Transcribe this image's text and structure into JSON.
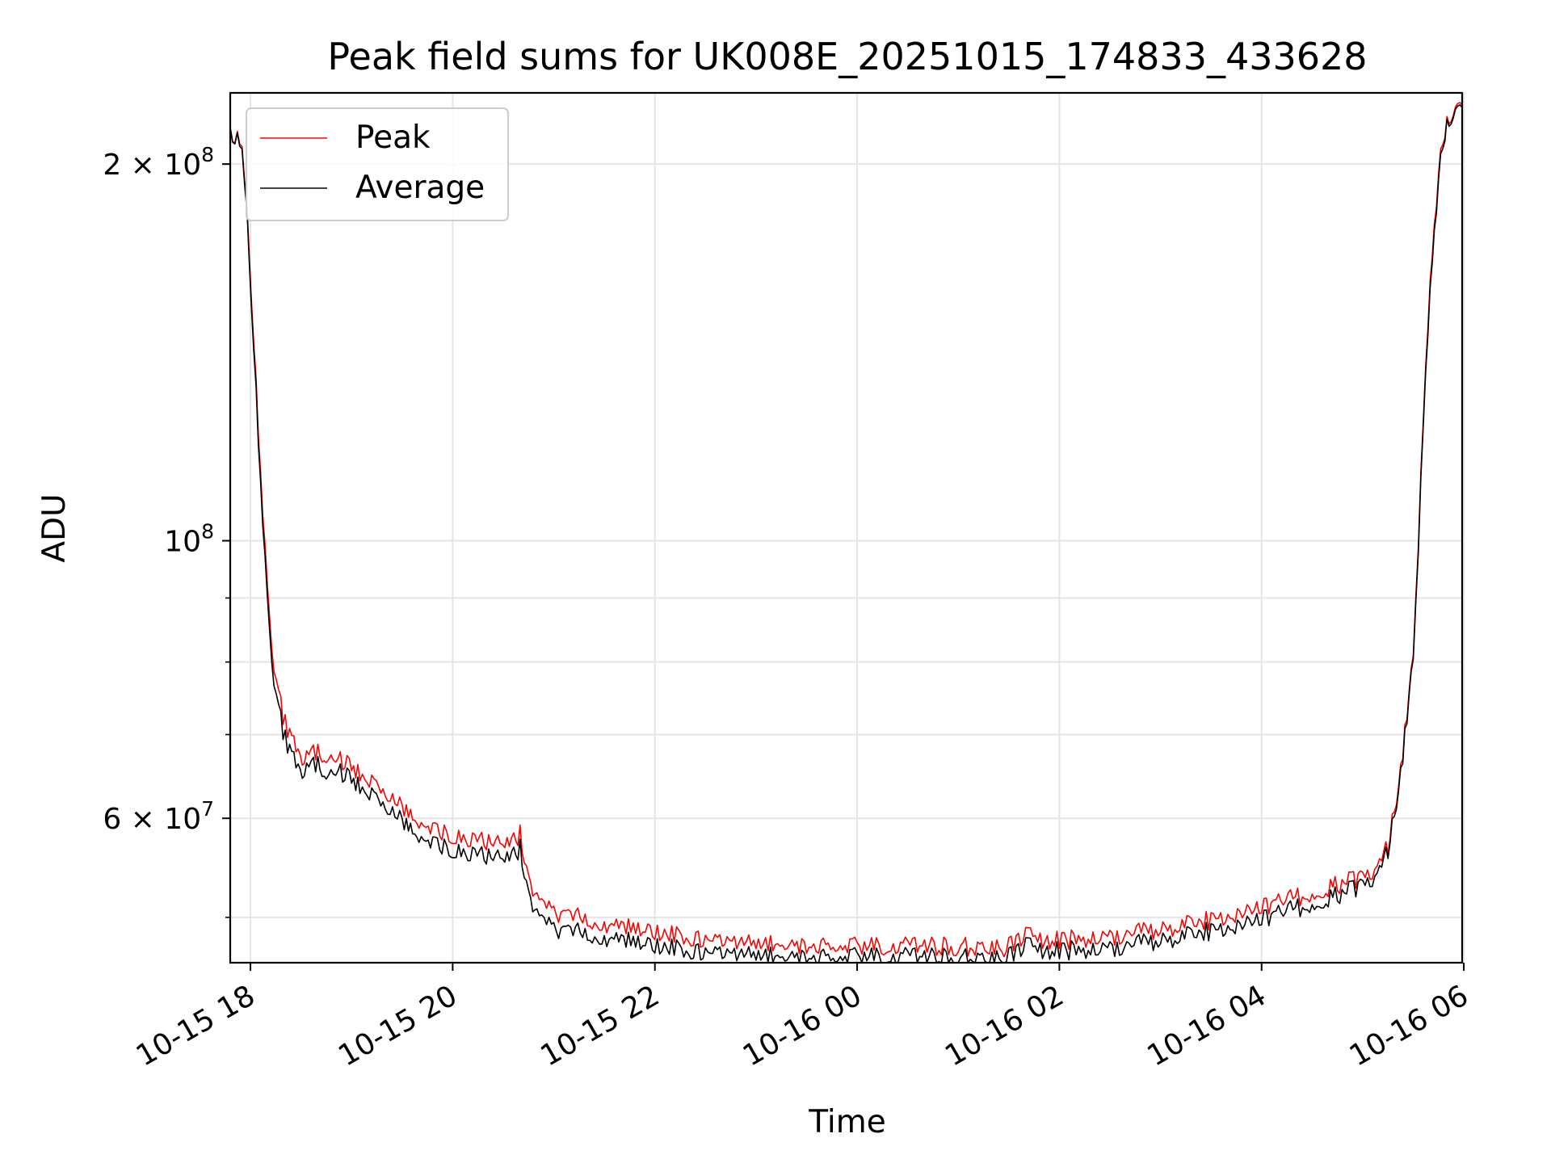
{
  "chart_data": {
    "type": "line",
    "title": "Peak field sums for UK008E_20251015_174833_433628",
    "xlabel": "Time",
    "ylabel": "ADU",
    "yscale": "log",
    "grid": true,
    "legend_position": "upper-left",
    "xlim": [
      "2025-10-15 17:48",
      "2025-10-16 05:59"
    ],
    "ylim": [
      46000000,
      228000000
    ],
    "x_ticks": [
      {
        "value": "2025-10-15 18:00",
        "label": "10-15 18"
      },
      {
        "value": "2025-10-15 20:00",
        "label": "10-15 20"
      },
      {
        "value": "2025-10-15 22:00",
        "label": "10-15 22"
      },
      {
        "value": "2025-10-16 00:00",
        "label": "10-16 00"
      },
      {
        "value": "2025-10-16 02:00",
        "label": "10-16 02"
      },
      {
        "value": "2025-10-16 04:00",
        "label": "10-16 04"
      },
      {
        "value": "2025-10-16 06:00",
        "label": "10-16 06"
      }
    ],
    "y_major_ticks": [
      {
        "value": 200000000,
        "base": "2 × 10",
        "exp": "8"
      },
      {
        "value": 100000000,
        "base": "10",
        "exp": "8"
      },
      {
        "value": 60000000,
        "base": "6 × 10",
        "exp": "7"
      }
    ],
    "y_minor_ticks": [
      50000000,
      70000000,
      80000000,
      90000000
    ],
    "series": [
      {
        "name": "Peak",
        "color": "#ff0000",
        "x": [
          "2025-10-15 17:48",
          "2025-10-15 17:55",
          "2025-10-15 17:58",
          "2025-10-15 18:02",
          "2025-10-15 18:06",
          "2025-10-15 18:10",
          "2025-10-15 18:14",
          "2025-10-15 18:18",
          "2025-10-15 18:22",
          "2025-10-15 18:27",
          "2025-10-15 18:32",
          "2025-10-15 18:40",
          "2025-10-15 18:45",
          "2025-10-15 18:52",
          "2025-10-15 19:00",
          "2025-10-15 19:05",
          "2025-10-15 19:12",
          "2025-10-15 19:20",
          "2025-10-15 19:30",
          "2025-10-15 19:35",
          "2025-10-15 19:40",
          "2025-10-15 19:55",
          "2025-10-15 20:05",
          "2025-10-15 20:20",
          "2025-10-15 20:35",
          "2025-10-15 20:40",
          "2025-10-15 20:45",
          "2025-10-15 20:50",
          "2025-10-15 21:00",
          "2025-10-15 21:20",
          "2025-10-15 21:40",
          "2025-10-15 21:50",
          "2025-10-15 22:00",
          "2025-10-15 22:30",
          "2025-10-15 23:00",
          "2025-10-15 23:30",
          "2025-10-16 00:00",
          "2025-10-16 00:30",
          "2025-10-16 01:00",
          "2025-10-16 01:30",
          "2025-10-16 01:40",
          "2025-10-16 02:00",
          "2025-10-16 02:20",
          "2025-10-16 02:40",
          "2025-10-16 03:00",
          "2025-10-16 03:30",
          "2025-10-16 04:00",
          "2025-10-16 04:30",
          "2025-10-16 04:45",
          "2025-10-16 05:00",
          "2025-10-16 05:10",
          "2025-10-16 05:15",
          "2025-10-16 05:20",
          "2025-10-16 05:25",
          "2025-10-16 05:30",
          "2025-10-16 05:33",
          "2025-10-16 05:36",
          "2025-10-16 05:40",
          "2025-10-16 05:45",
          "2025-10-16 05:50",
          "2025-10-16 05:55",
          "2025-10-16 05:59"
        ],
        "y": [
          212000000,
          208000000,
          185000000,
          145000000,
          112000000,
          92000000,
          78000000,
          74000000,
          70000000,
          68500000,
          67000000,
          68000000,
          67000000,
          67000000,
          66000000,
          65000000,
          64500000,
          63000000,
          61000000,
          60000000,
          59000000,
          58500000,
          58000000,
          57500000,
          57000000,
          58500000,
          53500000,
          51500000,
          50500000,
          49800000,
          49200000,
          48800000,
          48600000,
          48000000,
          47600000,
          47500000,
          47400000,
          47400000,
          47400000,
          47300000,
          48200000,
          47900000,
          48200000,
          48500000,
          48900000,
          49800000,
          50800000,
          52300000,
          53000000,
          54000000,
          55000000,
          57000000,
          62000000,
          70000000,
          82000000,
          100000000,
          125000000,
          160000000,
          198000000,
          216000000,
          221000000,
          223000000
        ]
      },
      {
        "name": "Average",
        "color": "#000000",
        "x": [
          "2025-10-15 17:48",
          "2025-10-15 17:55",
          "2025-10-15 17:58",
          "2025-10-15 18:02",
          "2025-10-15 18:06",
          "2025-10-15 18:10",
          "2025-10-15 18:14",
          "2025-10-15 18:18",
          "2025-10-15 18:22",
          "2025-10-15 18:27",
          "2025-10-15 18:32",
          "2025-10-15 18:40",
          "2025-10-15 18:45",
          "2025-10-15 18:52",
          "2025-10-15 19:00",
          "2025-10-15 19:05",
          "2025-10-15 19:12",
          "2025-10-15 19:20",
          "2025-10-15 19:30",
          "2025-10-15 19:35",
          "2025-10-15 19:40",
          "2025-10-15 19:55",
          "2025-10-15 20:05",
          "2025-10-15 20:20",
          "2025-10-15 20:35",
          "2025-10-15 20:40",
          "2025-10-15 20:45",
          "2025-10-15 20:50",
          "2025-10-15 21:00",
          "2025-10-15 21:20",
          "2025-10-15 21:40",
          "2025-10-15 21:50",
          "2025-10-15 22:00",
          "2025-10-15 22:30",
          "2025-10-15 23:00",
          "2025-10-15 23:30",
          "2025-10-16 00:00",
          "2025-10-16 00:30",
          "2025-10-16 01:00",
          "2025-10-16 01:30",
          "2025-10-16 01:40",
          "2025-10-16 02:00",
          "2025-10-16 02:20",
          "2025-10-16 02:40",
          "2025-10-16 03:00",
          "2025-10-16 03:30",
          "2025-10-16 04:00",
          "2025-10-16 04:30",
          "2025-10-16 04:45",
          "2025-10-16 05:00",
          "2025-10-16 05:10",
          "2025-10-16 05:15",
          "2025-10-16 05:20",
          "2025-10-16 05:25",
          "2025-10-16 05:30",
          "2025-10-16 05:33",
          "2025-10-16 05:36",
          "2025-10-16 05:40",
          "2025-10-16 05:45",
          "2025-10-16 05:50",
          "2025-10-16 05:55",
          "2025-10-16 05:59"
        ],
        "y": [
          212000000,
          207000000,
          183000000,
          143000000,
          110000000,
          90000000,
          76000000,
          72000000,
          68000000,
          66500000,
          65500000,
          66500000,
          65000000,
          65500000,
          64500000,
          63500000,
          63000000,
          61500000,
          59500000,
          58500000,
          57500000,
          57000000,
          56500000,
          56000000,
          55500000,
          57000000,
          52000000,
          50000000,
          49000000,
          48500000,
          48000000,
          47600000,
          47400000,
          46900000,
          46600000,
          46500000,
          46500000,
          46500000,
          46400000,
          46400000,
          47300000,
          47000000,
          47200000,
          47500000,
          47900000,
          48800000,
          49700000,
          51300000,
          52000000,
          53200000,
          54300000,
          56500000,
          61500000,
          69500000,
          81500000,
          99000000,
          124000000,
          158000000,
          196000000,
          215000000,
          220000000,
          222000000
        ]
      }
    ]
  }
}
